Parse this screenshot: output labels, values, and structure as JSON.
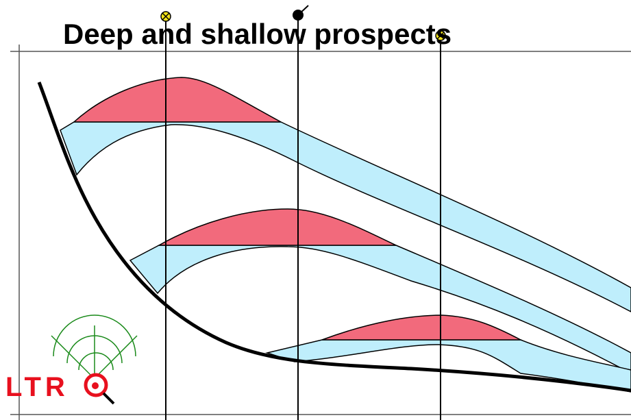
{
  "title": "Deep and shallow prospects",
  "logo": {
    "text": "LTR"
  }
}
